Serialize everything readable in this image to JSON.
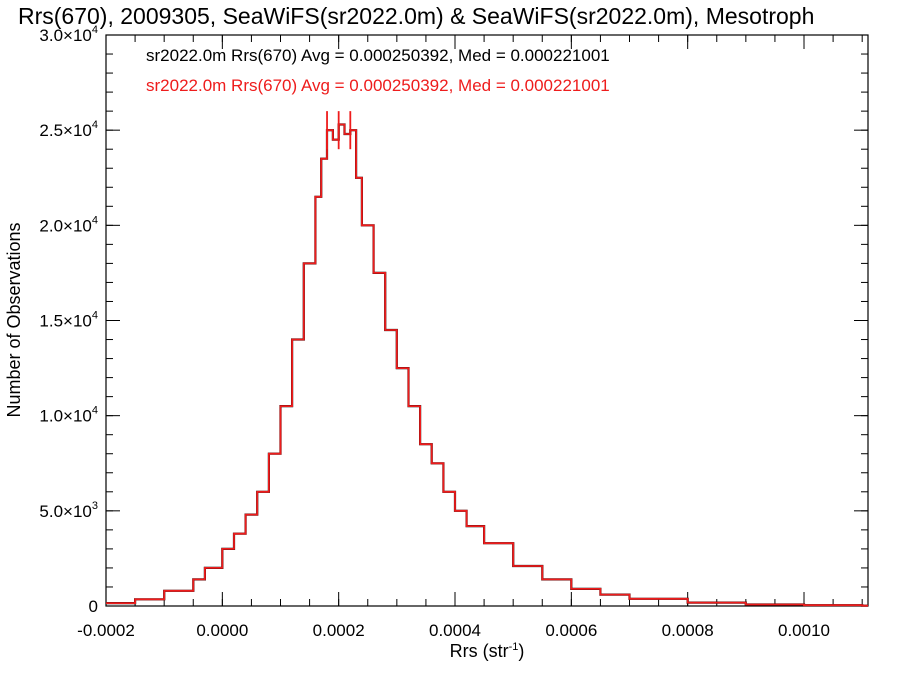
{
  "chart_data": {
    "type": "histogram",
    "title": "Rrs(670), 2009305, SeaWiFS(sr2022.0m) & SeaWiFS(sr2022.0m), Mesotroph",
    "xlabel": "Rrs (str",
    "xlabel_sup": "-1",
    "xlabel_close": ")",
    "ylabel": "Number of Observations",
    "xlim": [
      -0.0002,
      0.00111
    ],
    "ylim": [
      0,
      30000
    ],
    "xticks": [
      {
        "value": -0.0002,
        "label": "-0.0002"
      },
      {
        "value": 0.0,
        "label": "0.0000"
      },
      {
        "value": 0.0002,
        "label": "0.0002"
      },
      {
        "value": 0.0004,
        "label": "0.0004"
      },
      {
        "value": 0.0006,
        "label": "0.0006"
      },
      {
        "value": 0.0008,
        "label": "0.0008"
      },
      {
        "value": 0.001,
        "label": "0.0010"
      }
    ],
    "yticks": [
      {
        "value": 0,
        "mant": "0",
        "exp": ""
      },
      {
        "value": 5000,
        "mant": "5.0×10",
        "exp": "3"
      },
      {
        "value": 10000,
        "mant": "1.0×10",
        "exp": "4"
      },
      {
        "value": 15000,
        "mant": "1.5×10",
        "exp": "4"
      },
      {
        "value": 20000,
        "mant": "2.0×10",
        "exp": "4"
      },
      {
        "value": 25000,
        "mant": "2.5×10",
        "exp": "4"
      },
      {
        "value": 30000,
        "mant": "3.0×10",
        "exp": "4"
      }
    ],
    "legend": [
      {
        "text": "sr2022.0m Rrs(670) Avg = 0.000250392, Med = 0.000221001",
        "color": "#000000"
      },
      {
        "text": "sr2022.0m Rrs(670) Avg = 0.000250392, Med = 0.000221001",
        "color": "#ee1c1c"
      }
    ],
    "legend_placement": "top-left",
    "series": [
      {
        "color": "#ee1c1c",
        "x": [
          -0.0002,
          -0.00015,
          -0.0001,
          -5e-05,
          -3e-05,
          0.0,
          2e-05,
          4e-05,
          6e-05,
          8e-05,
          0.0001,
          0.00012,
          0.00014,
          0.00016,
          0.00017,
          0.00018,
          0.00019,
          0.0002,
          0.00021,
          0.00022,
          0.00023,
          0.00024,
          0.00026,
          0.00028,
          0.0003,
          0.00032,
          0.00034,
          0.00036,
          0.00038,
          0.0004,
          0.00042,
          0.00045,
          0.0005,
          0.00055,
          0.0006,
          0.00065,
          0.0007,
          0.0008,
          0.0009,
          0.001,
          0.0011
        ],
        "y": [
          150,
          350,
          800,
          1400,
          2000,
          3000,
          3800,
          4800,
          6000,
          8000,
          10500,
          14000,
          18000,
          21500,
          23500,
          25000,
          24500,
          25300,
          24800,
          25000,
          22500,
          20000,
          17500,
          14500,
          12500,
          10500,
          8500,
          7500,
          6000,
          5000,
          4200,
          3300,
          2100,
          1400,
          900,
          600,
          380,
          180,
          80,
          40,
          15
        ]
      },
      {
        "color": "#ee1c1c",
        "x": [
          0.00018,
          0.0002,
          0.00022
        ],
        "y": [
          26000,
          26000,
          26000
        ]
      }
    ]
  }
}
